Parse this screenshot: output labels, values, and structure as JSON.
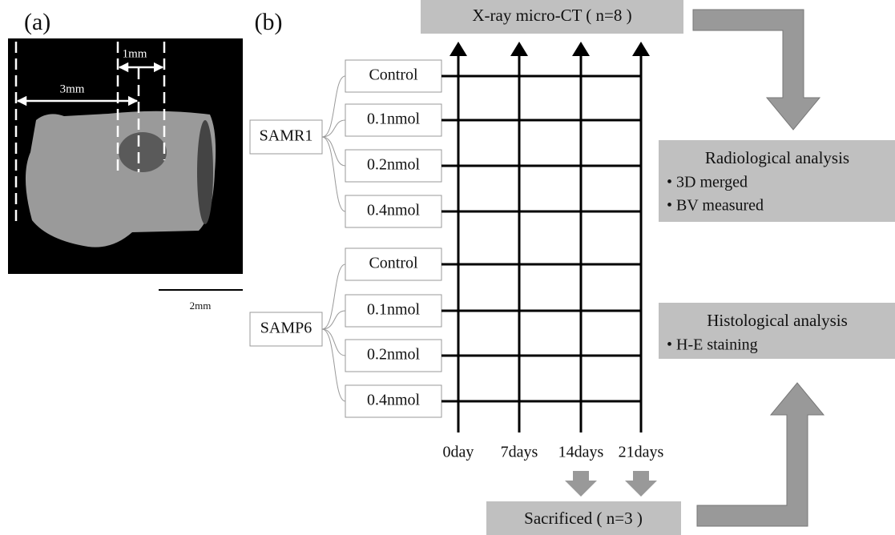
{
  "panel_a": {
    "label": "(a)",
    "dimension_long": "3mm",
    "dimension_short": "1mm",
    "scale_bar": "2mm"
  },
  "panel_b": {
    "label": "(b)",
    "top_box": "X-ray micro-CT ( n=8 )",
    "groups": [
      {
        "name": "SAMR1",
        "doses": [
          "Control",
          "0.1nmol",
          "0.2nmol",
          "0.4nmol"
        ]
      },
      {
        "name": "SAMP6",
        "doses": [
          "Control",
          "0.1nmol",
          "0.2nmol",
          "0.4nmol"
        ]
      }
    ],
    "timepoints": [
      "0day",
      "7days",
      "14days",
      "21days"
    ],
    "bottom_box": "Sacrificed ( n=3 )",
    "analyses": [
      {
        "title": "Radiological analysis",
        "items": [
          "• 3D merged",
          "• BV measured"
        ]
      },
      {
        "title": "Histological analysis",
        "items": [
          "• H-E staining"
        ]
      }
    ]
  }
}
